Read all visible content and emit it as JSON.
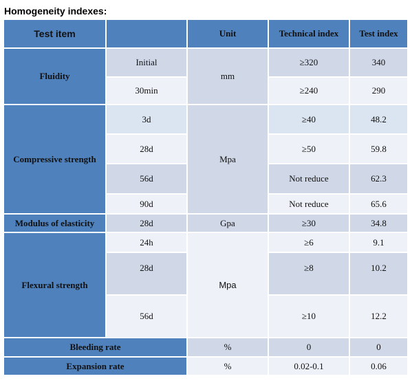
{
  "heading": "Homogeneity indexes:",
  "header": {
    "test_item": "Test item",
    "unit": "Unit",
    "technical_index": "Technical index",
    "test_index": "Test index"
  },
  "fluidity": {
    "label": "Fluidity",
    "unit": "mm",
    "rows": [
      {
        "sub": "Initial",
        "tech": "≥320",
        "test": "340"
      },
      {
        "sub": "30min",
        "tech": "≥240",
        "test": "290"
      }
    ]
  },
  "compressive": {
    "label": "Compressive strength",
    "unit": "Mpa",
    "rows": [
      {
        "sub": "3d",
        "tech": "≥40",
        "test": "48.2"
      },
      {
        "sub": "28d",
        "tech": "≥50",
        "test": "59.8"
      },
      {
        "sub": "56d",
        "tech": "Not reduce",
        "test": "62.3"
      },
      {
        "sub": "90d",
        "tech": "Not reduce",
        "test": "65.6"
      }
    ]
  },
  "modulus": {
    "label": "Modulus of elasticity",
    "sub": "28d",
    "unit": "Gpa",
    "tech": "≥30",
    "test": "34.8"
  },
  "flexural": {
    "label": "Flexural strength",
    "unit": "Mpa",
    "rows": [
      {
        "sub": "24h",
        "tech": "≥6",
        "test": "9.1"
      },
      {
        "sub": "28d",
        "tech": "≥8",
        "test": "10.2"
      },
      {
        "sub": "56d",
        "tech": "≥10",
        "test": "12.2"
      }
    ]
  },
  "bleeding": {
    "label": "Bleeding rate",
    "unit": "%",
    "tech": "0",
    "test": "0"
  },
  "expansion": {
    "label": "Expansion rate",
    "unit": "%",
    "tech": "0.02-0.1",
    "test": "0.06"
  }
}
